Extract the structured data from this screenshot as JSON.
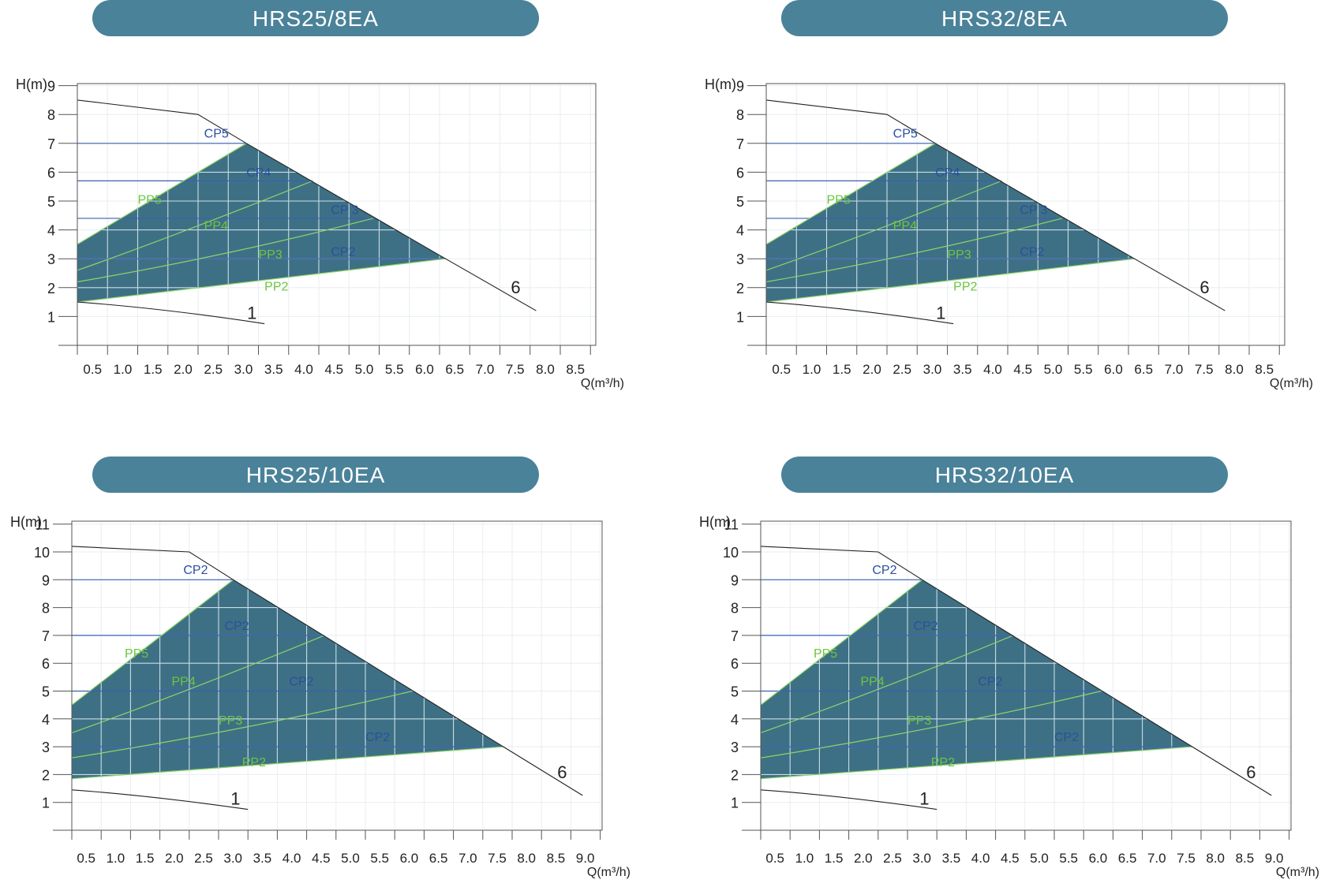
{
  "charts": [
    {
      "title": "HRS25/8EA",
      "ylabel": "H(m)",
      "xlabel": "Q(m³/h)",
      "yticks": [
        "1",
        "2",
        "3",
        "4",
        "5",
        "6",
        "7",
        "8",
        "9"
      ],
      "xticks": [
        "0.5",
        "1.0",
        "1.5",
        "2.0",
        "2.5",
        "3.0",
        "3.5",
        "4.0",
        "4.5",
        "5.0",
        "5.5",
        "6.0",
        "6.5",
        "7.0",
        "7.5",
        "8.0",
        "8.5"
      ],
      "curve_labels": {
        "max": "6",
        "min": "1"
      },
      "cp_labels": [
        "CP5",
        "CP4",
        "CP 3",
        "CP2"
      ],
      "pp_labels": [
        "PP5",
        "PP4",
        "PP3",
        "PP2"
      ]
    },
    {
      "title": "HRS32/8EA",
      "ylabel": "H(m)",
      "xlabel": "Q(m³/h)",
      "yticks": [
        "1",
        "2",
        "3",
        "4",
        "5",
        "6",
        "7",
        "8",
        "9"
      ],
      "xticks": [
        "0.5",
        "1.0",
        "1.5",
        "2.0",
        "2.5",
        "3.0",
        "3.5",
        "4.0",
        "4.5",
        "5.0",
        "5.5",
        "6.0",
        "6.5",
        "7.0",
        "7.5",
        "8.0",
        "8.5"
      ],
      "curve_labels": {
        "max": "6",
        "min": "1"
      },
      "cp_labels": [
        "CP5",
        "CP4",
        "CP 3",
        "CP2"
      ],
      "pp_labels": [
        "PP5",
        "PP4",
        "PP3",
        "PP2"
      ]
    },
    {
      "title": "HRS25/10EA",
      "ylabel": "H(m)",
      "xlabel": "Q(m³/h)",
      "yticks": [
        "1",
        "2",
        "3",
        "4",
        "5",
        "6",
        "7",
        "8",
        "9",
        "10",
        "11"
      ],
      "xticks": [
        "0.5",
        "1.0",
        "1.5",
        "2.0",
        "2.5",
        "3.0",
        "3.5",
        "4.0",
        "4.5",
        "5.0",
        "5.5",
        "6.0",
        "6.5",
        "7.0",
        "7.5",
        "8.0",
        "8.5",
        "9.0"
      ],
      "curve_labels": {
        "max": "6",
        "min": "1"
      },
      "cp_labels": [
        "CP2",
        "CP2",
        "CP2",
        "CP2"
      ],
      "pp_labels": [
        "PP5",
        "PP4",
        "PP3",
        "PP2"
      ]
    },
    {
      "title": "HRS32/10EA",
      "ylabel": "H(m)",
      "xlabel": "Q(m³/h)",
      "yticks": [
        "1",
        "2",
        "3",
        "4",
        "5",
        "6",
        "7",
        "8",
        "9",
        "10",
        "11"
      ],
      "xticks": [
        "0.5",
        "1.0",
        "1.5",
        "2.0",
        "2.5",
        "3.0",
        "3.5",
        "4.0",
        "4.5",
        "5.0",
        "5.5",
        "6.0",
        "6.5",
        "7.0",
        "7.5",
        "8.0",
        "8.5",
        "9.0"
      ],
      "curve_labels": {
        "max": "6",
        "min": "1"
      },
      "cp_labels": [
        "CP2",
        "CP2",
        "CP2",
        "CP2"
      ],
      "pp_labels": [
        "PP5",
        "PP4",
        "PP3",
        "PP2"
      ]
    }
  ],
  "colors": {
    "banner": "#4a8299",
    "banner_text": "#ffffff",
    "region_fill": "#3e7085",
    "region_grid": "#c9dde6",
    "cp_line": "#3b5fb0",
    "cp_text": "#2a4fa0",
    "pp_line": "#8fd46a",
    "pp_text": "#6cc63f",
    "frame": "#555555",
    "bg_grid": "#e8eef2",
    "curve": "#222222"
  },
  "chart_data": [
    {
      "type": "line",
      "title": "HRS25/8EA",
      "xlabel": "Q(m³/h)",
      "ylabel": "H(m)",
      "xlim": [
        0,
        8.5
      ],
      "ylim": [
        0,
        9
      ],
      "series": [
        {
          "name": "6",
          "x": [
            0,
            2.0,
            2.8,
            6.1,
            7.6
          ],
          "y": [
            8.5,
            8.0,
            7.0,
            3.0,
            1.2
          ]
        },
        {
          "name": "1",
          "x": [
            0,
            1.0,
            2.0,
            3.1
          ],
          "y": [
            1.5,
            1.35,
            1.1,
            0.75
          ]
        },
        {
          "name": "CP5",
          "x": [
            0,
            2.8
          ],
          "y": [
            7.0,
            7.0
          ]
        },
        {
          "name": "CP4",
          "x": [
            0,
            3.9
          ],
          "y": [
            5.7,
            5.7
          ]
        },
        {
          "name": "CP 3",
          "x": [
            0,
            4.9
          ],
          "y": [
            4.4,
            4.4
          ]
        },
        {
          "name": "CP2",
          "x": [
            0,
            6.1
          ],
          "y": [
            3.0,
            3.0
          ]
        },
        {
          "name": "PP5",
          "x": [
            0,
            2.8
          ],
          "y": [
            3.5,
            7.0
          ]
        },
        {
          "name": "PP4",
          "x": [
            0,
            1.5,
            3.9
          ],
          "y": [
            2.6,
            3.7,
            5.7
          ]
        },
        {
          "name": "PP3",
          "x": [
            0,
            2.5,
            4.9
          ],
          "y": [
            2.2,
            3.1,
            4.4
          ]
        },
        {
          "name": "PP2",
          "x": [
            0,
            6.1
          ],
          "y": [
            1.5,
            3.0
          ]
        }
      ]
    },
    {
      "type": "line",
      "title": "HRS32/8EA",
      "xlabel": "Q(m³/h)",
      "ylabel": "H(m)",
      "xlim": [
        0,
        8.5
      ],
      "ylim": [
        0,
        9
      ],
      "series": [
        {
          "name": "6",
          "x": [
            0,
            2.0,
            2.8,
            6.1,
            7.6
          ],
          "y": [
            8.5,
            8.0,
            7.0,
            3.0,
            1.2
          ]
        },
        {
          "name": "1",
          "x": [
            0,
            1.0,
            2.0,
            3.1
          ],
          "y": [
            1.5,
            1.35,
            1.1,
            0.75
          ]
        },
        {
          "name": "CP5",
          "x": [
            0,
            2.8
          ],
          "y": [
            7.0,
            7.0
          ]
        },
        {
          "name": "CP4",
          "x": [
            0,
            3.9
          ],
          "y": [
            5.7,
            5.7
          ]
        },
        {
          "name": "CP 3",
          "x": [
            0,
            4.9
          ],
          "y": [
            4.4,
            4.4
          ]
        },
        {
          "name": "CP2",
          "x": [
            0,
            6.1
          ],
          "y": [
            3.0,
            3.0
          ]
        },
        {
          "name": "PP5",
          "x": [
            0,
            2.8
          ],
          "y": [
            3.5,
            7.0
          ]
        },
        {
          "name": "PP4",
          "x": [
            0,
            1.5,
            3.9
          ],
          "y": [
            2.6,
            3.7,
            5.7
          ]
        },
        {
          "name": "PP3",
          "x": [
            0,
            2.5,
            4.9
          ],
          "y": [
            2.2,
            3.1,
            4.4
          ]
        },
        {
          "name": "PP2",
          "x": [
            0,
            6.1
          ],
          "y": [
            1.5,
            3.0
          ]
        }
      ]
    },
    {
      "type": "line",
      "title": "HRS25/10EA",
      "xlabel": "Q(m³/h)",
      "ylabel": "H(m)",
      "xlim": [
        0,
        9
      ],
      "ylim": [
        0,
        11
      ],
      "series": [
        {
          "name": "6",
          "x": [
            0,
            2.0,
            2.75,
            7.35,
            8.7
          ],
          "y": [
            10.2,
            10.0,
            9.0,
            3.0,
            1.25
          ]
        },
        {
          "name": "1",
          "x": [
            0,
            1.0,
            2.0,
            3.0
          ],
          "y": [
            1.45,
            1.3,
            1.05,
            0.75
          ]
        },
        {
          "name": "CP2",
          "x": [
            0,
            2.75
          ],
          "y": [
            9.0,
            9.0
          ]
        },
        {
          "name": "CP2",
          "x": [
            0,
            4.3
          ],
          "y": [
            7.0,
            7.0
          ]
        },
        {
          "name": "CP2",
          "x": [
            0,
            5.8
          ],
          "y": [
            5.0,
            5.0
          ]
        },
        {
          "name": "CP2",
          "x": [
            0,
            7.35
          ],
          "y": [
            3.0,
            3.0
          ]
        },
        {
          "name": "PP5",
          "x": [
            0,
            2.75
          ],
          "y": [
            4.5,
            9.0
          ]
        },
        {
          "name": "PP4",
          "x": [
            0,
            2.0,
            4.3
          ],
          "y": [
            3.5,
            5.0,
            7.0
          ]
        },
        {
          "name": "PP3",
          "x": [
            0,
            3.0,
            5.8
          ],
          "y": [
            2.6,
            3.6,
            5.0
          ]
        },
        {
          "name": "PP2",
          "x": [
            0,
            7.35
          ],
          "y": [
            1.85,
            3.0
          ]
        }
      ]
    },
    {
      "type": "line",
      "title": "HRS32/10EA",
      "xlabel": "Q(m³/h)",
      "ylabel": "H(m)",
      "xlim": [
        0,
        9
      ],
      "ylim": [
        0,
        11
      ],
      "series": [
        {
          "name": "6",
          "x": [
            0,
            2.0,
            2.75,
            7.35,
            8.7
          ],
          "y": [
            10.2,
            10.0,
            9.0,
            3.0,
            1.25
          ]
        },
        {
          "name": "1",
          "x": [
            0,
            1.0,
            2.0,
            3.0
          ],
          "y": [
            1.45,
            1.3,
            1.05,
            0.75
          ]
        },
        {
          "name": "CP2",
          "x": [
            0,
            2.75
          ],
          "y": [
            9.0,
            9.0
          ]
        },
        {
          "name": "CP2",
          "x": [
            0,
            4.3
          ],
          "y": [
            7.0,
            7.0
          ]
        },
        {
          "name": "CP2",
          "x": [
            0,
            5.8
          ],
          "y": [
            5.0,
            5.0
          ]
        },
        {
          "name": "CP2",
          "x": [
            0,
            7.35
          ],
          "y": [
            3.0,
            3.0
          ]
        },
        {
          "name": "PP5",
          "x": [
            0,
            2.75
          ],
          "y": [
            4.5,
            9.0
          ]
        },
        {
          "name": "PP4",
          "x": [
            0,
            2.0,
            4.3
          ],
          "y": [
            3.5,
            5.0,
            7.0
          ]
        },
        {
          "name": "PP3",
          "x": [
            0,
            3.0,
            5.8
          ],
          "y": [
            2.6,
            3.6,
            5.0
          ]
        },
        {
          "name": "PP2",
          "x": [
            0,
            7.35
          ],
          "y": [
            1.85,
            3.0
          ]
        }
      ]
    }
  ]
}
